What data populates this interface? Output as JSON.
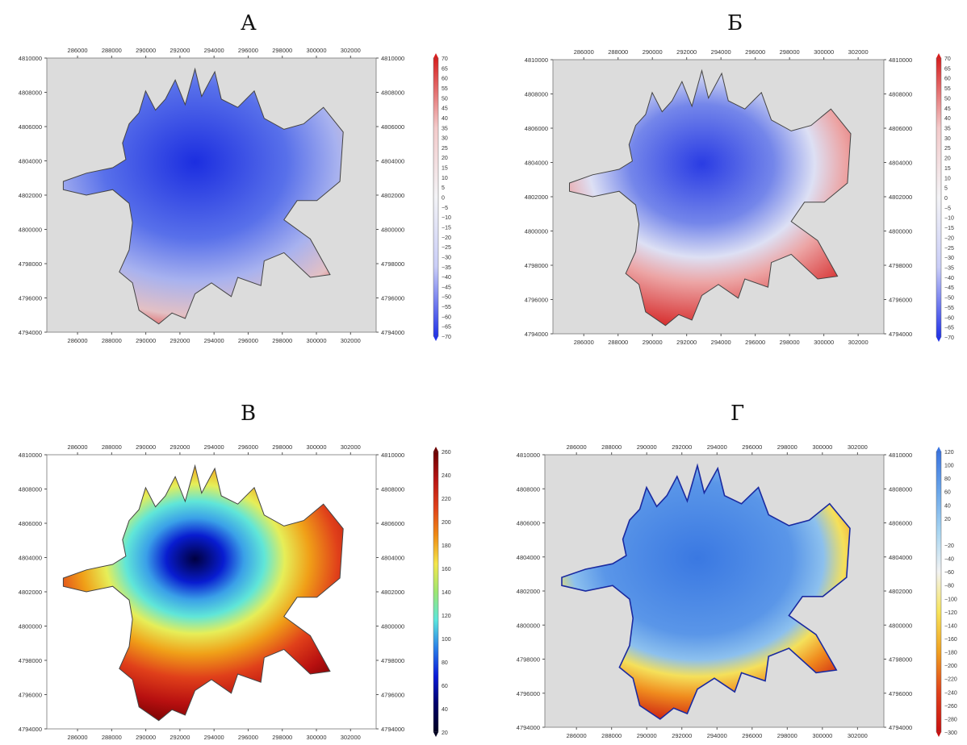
{
  "figure": {
    "grid": false
  },
  "chart_data": [
    {
      "type": "heatmap",
      "title": "А",
      "x_ticks": [
        "286000",
        "288000",
        "290000",
        "292000",
        "294000",
        "296000",
        "298000",
        "300000",
        "302000"
      ],
      "y_ticks": [
        "4810000",
        "4808000",
        "4806000",
        "4804000",
        "4802000",
        "4800000",
        "4798000",
        "4796000",
        "4794000"
      ],
      "xlim": [
        284200,
        303500
      ],
      "ylim": [
        4794000,
        4810000
      ],
      "colorbar": {
        "ticks": [
          "70",
          "65",
          "60",
          "55",
          "50",
          "45",
          "40",
          "35",
          "30",
          "25",
          "20",
          "15",
          "10",
          "5",
          "0",
          "−5",
          "−10",
          "−15",
          "−20",
          "−25",
          "−30",
          "−35",
          "−40",
          "−45",
          "−50",
          "−55",
          "−60",
          "−65",
          "−70"
        ],
        "range": [
          -70,
          70
        ],
        "colors": [
          "#d71f1f",
          "#f3caca",
          "#f3f3f6",
          "#c9cdf7",
          "#2233e8"
        ]
      },
      "background": "#dcdcdc",
      "field": "mostly negative (blue), darkest in north-centre"
    },
    {
      "type": "heatmap",
      "title": "Б",
      "x_ticks": [
        "286000",
        "288000",
        "290000",
        "292000",
        "294000",
        "296000",
        "298000",
        "300000",
        "302000"
      ],
      "y_ticks": [
        "4810000",
        "4808000",
        "4806000",
        "4804000",
        "4802000",
        "4800000",
        "4798000",
        "4796000",
        "4794000"
      ],
      "xlim": [
        284200,
        303500
      ],
      "ylim": [
        4794000,
        4810000
      ],
      "colorbar": {
        "ticks": [
          "70",
          "65",
          "60",
          "55",
          "50",
          "45",
          "40",
          "35",
          "30",
          "25",
          "20",
          "15",
          "10",
          "5",
          "0",
          "−5",
          "−10",
          "−15",
          "−20",
          "−25",
          "−30",
          "−35",
          "−40",
          "−45",
          "−50",
          "−55",
          "−60",
          "−65",
          "−70"
        ],
        "range": [
          -70,
          70
        ],
        "colors": [
          "#d71f1f",
          "#f3caca",
          "#f3f3f6",
          "#c9cdf7",
          "#2233e8"
        ]
      },
      "background": "#dcdcdc",
      "field": "blue centre, positive (red) periphery in south, east and west"
    },
    {
      "type": "heatmap",
      "title": "В",
      "x_ticks": [
        "286000",
        "288000",
        "290000",
        "292000",
        "294000",
        "296000",
        "298000",
        "300000",
        "302000"
      ],
      "y_ticks": [
        "4810000",
        "4808000",
        "4806000",
        "4804000",
        "4802000",
        "4800000",
        "4798000",
        "4796000",
        "4794000"
      ],
      "xlim": [
        284200,
        303500
      ],
      "ylim": [
        4794000,
        4810000
      ],
      "colorbar": {
        "ticks": [
          "260",
          "240",
          "220",
          "200",
          "180",
          "160",
          "140",
          "120",
          "100",
          "80",
          "60",
          "40",
          "20"
        ],
        "range": [
          20,
          260
        ],
        "colors": [
          "#6b0000",
          "#b81414",
          "#e0401a",
          "#f08c14",
          "#f4e64a",
          "#9de670",
          "#5ce6dc",
          "#2a80e8",
          "#0a1ad8",
          "#000068",
          "#000020"
        ]
      },
      "background": "#ffffff",
      "field": "concentric rings: dark blue core, yellow/cyan ring, red-brown outer lobes"
    },
    {
      "type": "heatmap",
      "title": "Г",
      "x_ticks": [
        "286000",
        "288000",
        "290000",
        "292000",
        "294000",
        "296000",
        "298000",
        "300000",
        "302000"
      ],
      "y_ticks": [
        "4810000",
        "4808000",
        "4806000",
        "4804000",
        "4802000",
        "4800000",
        "4798000",
        "4796000",
        "4794000"
      ],
      "xlim": [
        284200,
        303500
      ],
      "ylim": [
        4794000,
        4810000
      ],
      "colorbar": {
        "ticks": [
          "120",
          "100",
          "80",
          "60",
          "40",
          "20",
          "",
          "−20",
          "−40",
          "−60",
          "−80",
          "−100",
          "−120",
          "−140",
          "−160",
          "−180",
          "−200",
          "−220",
          "−240",
          "−260",
          "−280",
          "−300"
        ],
        "range": [
          -300,
          120
        ],
        "colors": [
          "#3a74e0",
          "#6aa6ea",
          "#a8d6f2",
          "#f2f2f2",
          "#f7e45a",
          "#f0a020",
          "#e0401a",
          "#c81010"
        ]
      },
      "background": "#dcdcdc",
      "field": "blue centre, yellow/orange/red periphery in south and east"
    }
  ]
}
